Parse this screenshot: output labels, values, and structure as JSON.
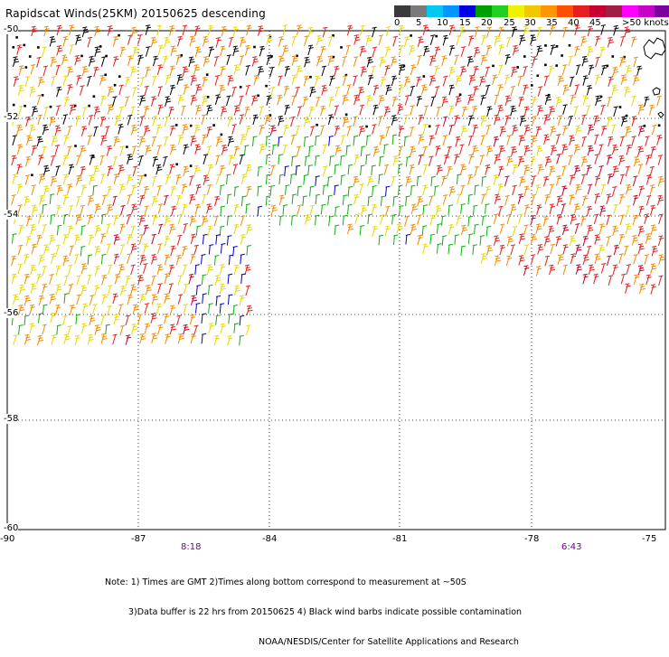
{
  "title": "Rapidscat Winds(25KM) 20150625 descending",
  "colorbar": {
    "colors": [
      "#3a3a3a",
      "#7a7a7a",
      "#00c8f0",
      "#0096ff",
      "#0000e6",
      "#00a000",
      "#20d020",
      "#f0f000",
      "#f0c800",
      "#ff9600",
      "#ff5000",
      "#e61e1e",
      "#c80032",
      "#a01e46",
      "#ff00ff",
      "#c800c8",
      "#7d00a0"
    ],
    "labels": [
      "0",
      "5",
      "10",
      "15",
      "20",
      "25",
      "30",
      "35",
      "40",
      "45",
      ">50 knots"
    ]
  },
  "axes": {
    "lat_labels": [
      "-50",
      "-52",
      "-54",
      "-56",
      "-58",
      "-60"
    ],
    "lon_labels": [
      "-90",
      "-87",
      "-84",
      "-81",
      "-78",
      "-75"
    ]
  },
  "time_labels": [
    "8:18",
    "6:43"
  ],
  "notes": {
    "line1": "Note: 1) Times are GMT 2)Times along bottom correspond to measurement at ~50S",
    "line2": "3)Data buffer is 22 hrs from 20150625 4) Black wind barbs indicate possible contamination",
    "line3": "NOAA/NESDIS/Center for Satellite Applications and Research"
  }
}
